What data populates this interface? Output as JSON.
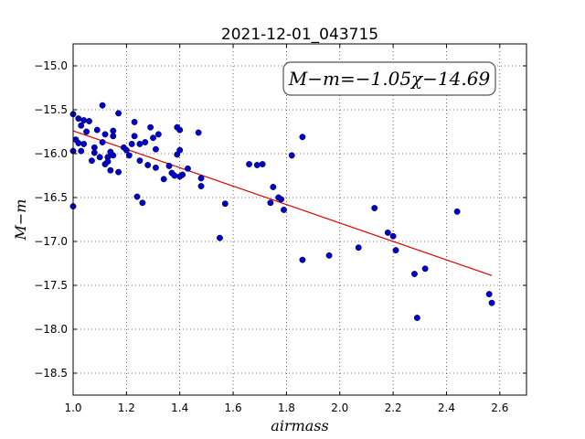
{
  "chart_data": {
    "type": "scatter",
    "title": "2021-12-01_043715",
    "xlabel": "airmass",
    "ylabel": "M−m",
    "annotation": "M−m=−1.05χ−14.69",
    "xlim": [
      1.0,
      2.7
    ],
    "ylim": [
      -18.75,
      -14.75
    ],
    "y_inverted": true,
    "grid": true,
    "x_ticks": [
      "1.0",
      "1.2",
      "1.4",
      "1.6",
      "1.8",
      "2.0",
      "2.2",
      "2.4",
      "2.6"
    ],
    "y_ticks": [
      "−15.0",
      "−15.5",
      "−16.0",
      "−16.5",
      "−17.0",
      "−17.5",
      "−18.0",
      "−18.5"
    ],
    "point_color": "#0000cc",
    "fit_line_color": "#dd0000",
    "fit": {
      "slope": -1.05,
      "intercept": -14.69,
      "x_range": [
        1.0,
        2.57
      ]
    },
    "points": [
      [
        1.0,
        -15.55
      ],
      [
        1.0,
        -15.97
      ],
      [
        1.0,
        -16.6
      ],
      [
        1.01,
        -15.84
      ],
      [
        1.02,
        -15.6
      ],
      [
        1.02,
        -15.88
      ],
      [
        1.03,
        -15.68
      ],
      [
        1.03,
        -15.97
      ],
      [
        1.04,
        -15.62
      ],
      [
        1.04,
        -15.89
      ],
      [
        1.05,
        -15.75
      ],
      [
        1.06,
        -15.63
      ],
      [
        1.07,
        -16.08
      ],
      [
        1.08,
        -15.93
      ],
      [
        1.08,
        -15.99
      ],
      [
        1.09,
        -15.73
      ],
      [
        1.1,
        -16.04
      ],
      [
        1.11,
        -15.87
      ],
      [
        1.11,
        -15.45
      ],
      [
        1.12,
        -16.12
      ],
      [
        1.12,
        -15.78
      ],
      [
        1.13,
        -16.04
      ],
      [
        1.13,
        -16.09
      ],
      [
        1.14,
        -16.19
      ],
      [
        1.14,
        -15.98
      ],
      [
        1.15,
        -15.74
      ],
      [
        1.15,
        -15.8
      ],
      [
        1.15,
        -16.02
      ],
      [
        1.17,
        -15.54
      ],
      [
        1.17,
        -16.21
      ],
      [
        1.19,
        -15.93
      ],
      [
        1.2,
        -15.96
      ],
      [
        1.21,
        -16.02
      ],
      [
        1.22,
        -15.89
      ],
      [
        1.23,
        -15.8
      ],
      [
        1.23,
        -15.64
      ],
      [
        1.24,
        -16.49
      ],
      [
        1.25,
        -15.89
      ],
      [
        1.25,
        -16.08
      ],
      [
        1.26,
        -16.56
      ],
      [
        1.27,
        -15.87
      ],
      [
        1.28,
        -16.13
      ],
      [
        1.29,
        -15.7
      ],
      [
        1.3,
        -15.82
      ],
      [
        1.31,
        -15.95
      ],
      [
        1.31,
        -16.16
      ],
      [
        1.32,
        -15.78
      ],
      [
        1.34,
        -16.29
      ],
      [
        1.36,
        -16.14
      ],
      [
        1.37,
        -16.22
      ],
      [
        1.38,
        -16.25
      ],
      [
        1.39,
        -15.7
      ],
      [
        1.39,
        -16.01
      ],
      [
        1.4,
        -15.73
      ],
      [
        1.4,
        -15.96
      ],
      [
        1.4,
        -16.26
      ],
      [
        1.41,
        -16.24
      ],
      [
        1.43,
        -16.17
      ],
      [
        1.47,
        -15.76
      ],
      [
        1.48,
        -16.28
      ],
      [
        1.48,
        -16.37
      ],
      [
        1.55,
        -16.96
      ],
      [
        1.57,
        -16.57
      ],
      [
        1.66,
        -16.12
      ],
      [
        1.69,
        -16.13
      ],
      [
        1.71,
        -16.12
      ],
      [
        1.74,
        -16.56
      ],
      [
        1.75,
        -16.38
      ],
      [
        1.77,
        -16.5
      ],
      [
        1.78,
        -16.52
      ],
      [
        1.79,
        -16.64
      ],
      [
        1.82,
        -16.02
      ],
      [
        1.86,
        -15.81
      ],
      [
        1.86,
        -17.21
      ],
      [
        1.96,
        -17.16
      ],
      [
        2.07,
        -17.07
      ],
      [
        2.13,
        -16.62
      ],
      [
        2.18,
        -16.9
      ],
      [
        2.2,
        -16.94
      ],
      [
        2.21,
        -17.1
      ],
      [
        2.28,
        -17.37
      ],
      [
        2.29,
        -17.87
      ],
      [
        2.32,
        -17.31
      ],
      [
        2.44,
        -16.66
      ],
      [
        2.56,
        -17.6
      ],
      [
        2.57,
        -17.7
      ]
    ]
  }
}
